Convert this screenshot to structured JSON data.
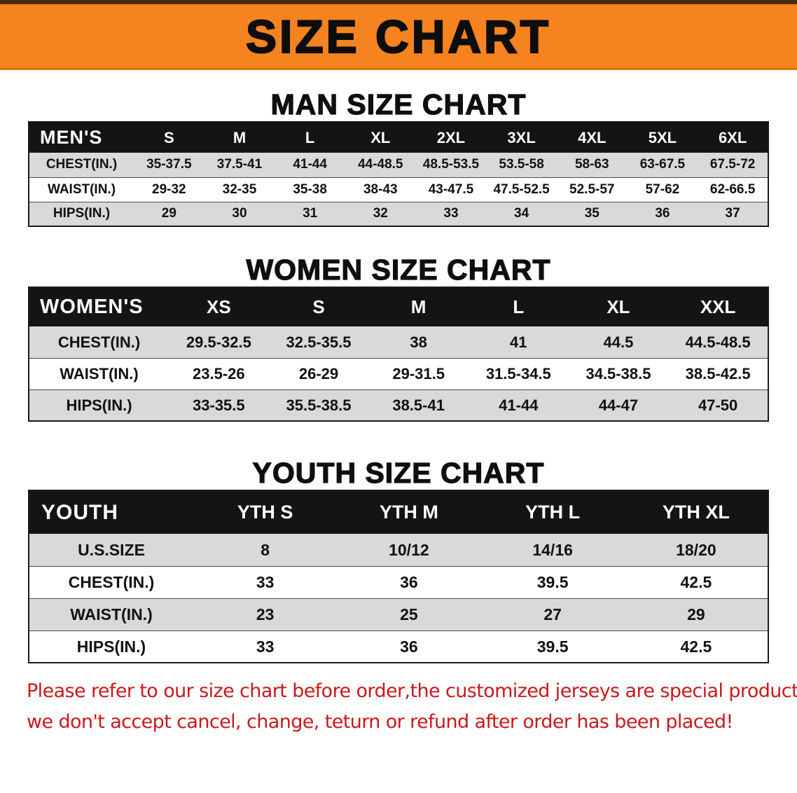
{
  "banner": {
    "title": "SIZE CHART"
  },
  "man_section": {
    "heading": "MAN SIZE CHART",
    "table": {
      "header": [
        "MEN'S",
        "S",
        "M",
        "L",
        "XL",
        "2XL",
        "3XL",
        "4XL",
        "5XL",
        "6XL"
      ],
      "rows": [
        [
          "CHEST(IN.)",
          "35-37.5",
          "37.5-41",
          "41-44",
          "44-48.5",
          "48.5-53.5",
          "53.5-58",
          "58-63",
          "63-67.5",
          "67.5-72"
        ],
        [
          "WAIST(IN.)",
          "29-32",
          "32-35",
          "35-38",
          "38-43",
          "43-47.5",
          "47.5-52.5",
          "52.5-57",
          "57-62",
          "62-66.5"
        ],
        [
          "HIPS(IN.)",
          "29",
          "30",
          "31",
          "32",
          "33",
          "34",
          "35",
          "36",
          "37"
        ]
      ]
    }
  },
  "women_section": {
    "heading": "WOMEN SIZE CHART",
    "table": {
      "header": [
        "WOMEN'S",
        "XS",
        "S",
        "M",
        "L",
        "XL",
        "XXL"
      ],
      "rows": [
        [
          "CHEST(IN.)",
          "29.5-32.5",
          "32.5-35.5",
          "38",
          "41",
          "44.5",
          "44.5-48.5"
        ],
        [
          "WAIST(IN.)",
          "23.5-26",
          "26-29",
          "29-31.5",
          "31.5-34.5",
          "34.5-38.5",
          "38.5-42.5"
        ],
        [
          "HIPS(IN.)",
          "33-35.5",
          "35.5-38.5",
          "38.5-41",
          "41-44",
          "44-47",
          "47-50"
        ]
      ]
    }
  },
  "youth_section": {
    "heading": "YOUTH SIZE CHART",
    "table": {
      "header": [
        "YOUTH",
        "YTH S",
        "YTH M",
        "YTH L",
        "YTH XL"
      ],
      "rows": [
        [
          "U.S.SIZE",
          "8",
          "10/12",
          "14/16",
          "18/20"
        ],
        [
          "CHEST(IN.)",
          "33",
          "36",
          "39.5",
          "42.5"
        ],
        [
          "WAIST(IN.)",
          "23",
          "25",
          "27",
          "29"
        ],
        [
          "HIPS(IN.)",
          "33",
          "36",
          "39.5",
          "42.5"
        ]
      ]
    }
  },
  "footer": {
    "line1": "Please refer to our size chart before order,the customized jerseys are special products,",
    "line2": "we don't accept cancel, change, teturn or refund after order has been placed!"
  },
  "colors": {
    "banner_bg": "#f5831f",
    "table_header_bg": "#141414",
    "row_stripe": "#d9d9d9",
    "note_red": "#c8191c"
  }
}
